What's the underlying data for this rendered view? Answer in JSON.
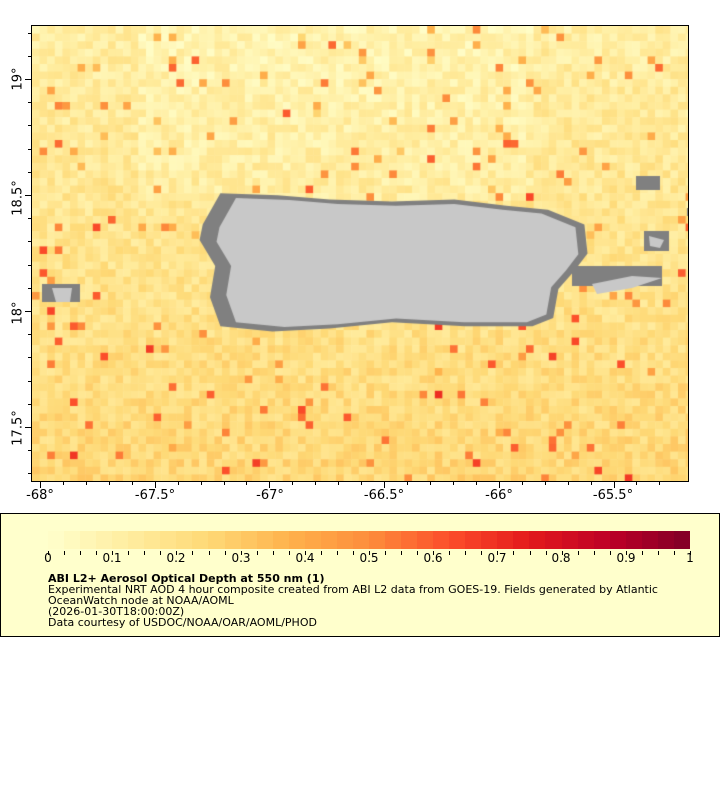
{
  "map": {
    "x_ticks": [
      "-68°",
      "-67.5°",
      "-67°",
      "-66.5°",
      "-66°",
      "-65.5°"
    ],
    "y_ticks": [
      "19°",
      "18.5°",
      "18°",
      "17.5°"
    ],
    "lon_range": [
      -68.04,
      -65.19
    ],
    "lat_range": [
      17.27,
      19.24
    ],
    "land_color": "#c8c8c8",
    "nodata_color": "#808080"
  },
  "legend": {
    "colorbar_ticks": [
      "0",
      "0.1",
      "0.2",
      "0.3",
      "0.4",
      "0.5",
      "0.6",
      "0.7",
      "0.8",
      "0.9",
      "1"
    ],
    "colorbar_range": [
      0,
      1
    ],
    "colormap": "YlOrRd",
    "title": "ABI L2+ Aerosol Optical Depth at 550 nm (1)",
    "desc_line1": "Experimental NRT AOD 4 hour composite created from ABI L2 data from GOES-19. Fields generated by Atlantic",
    "desc_line2": "OceanWatch node at NOAA/AOML",
    "time": "(2026-01-30T18:00:00Z)",
    "credit": "Data courtesy of USDOC/NOAA/OAR/AOML/PHOD"
  }
}
